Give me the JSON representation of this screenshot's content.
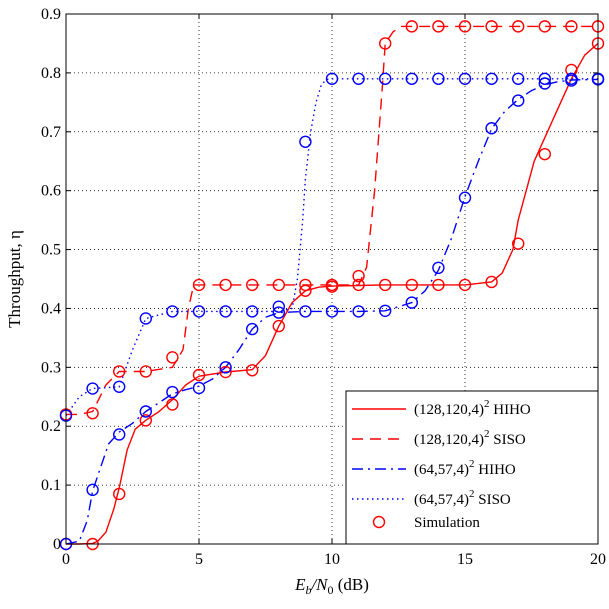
{
  "chart_data": {
    "type": "line",
    "title": "",
    "xlabel": "E_b/N_0 (dB)",
    "xlabel_parts": {
      "e": "E",
      "b": "b",
      "slash": "/N",
      "zero": "0",
      "unit": " (dB)"
    },
    "ylabel": "Throughput, η",
    "xlim": [
      0,
      20
    ],
    "ylim": [
      0,
      0.9
    ],
    "xticks": [
      0,
      5,
      10,
      15,
      20
    ],
    "xtick_labels": [
      "0",
      "5",
      "10",
      "15",
      "20"
    ],
    "yticks": [
      0,
      0.1,
      0.2,
      0.3,
      0.4,
      0.5,
      0.6,
      0.7,
      0.8,
      0.9
    ],
    "ytick_labels": [
      "0",
      "0.1",
      "0.2",
      "0.3",
      "0.4",
      "0.5",
      "0.6",
      "0.7",
      "0.8",
      "0.9"
    ],
    "grid": true,
    "legend_position": "bottom-right",
    "series": [
      {
        "name": "(128,120,4)^2 HIHO",
        "label_base": "(128,120,4)",
        "label_sup": "2",
        "label_suffix": " HIHO",
        "color": "#ff0000",
        "style": "solid",
        "x": [
          0,
          0.5,
          1,
          1.2,
          1.5,
          1.8,
          2,
          2.3,
          2.6,
          3,
          3.5,
          4,
          4.5,
          5,
          6,
          7,
          7.5,
          8,
          8.5,
          9,
          9.5,
          10,
          11,
          12,
          13,
          14,
          15,
          16,
          16.4,
          16.8,
          17,
          17.3,
          17.6,
          18,
          18.5,
          19,
          19.5,
          20
        ],
        "y": [
          0,
          0,
          0.001,
          0.005,
          0.02,
          0.06,
          0.095,
          0.16,
          0.195,
          0.21,
          0.225,
          0.245,
          0.27,
          0.285,
          0.292,
          0.296,
          0.32,
          0.37,
          0.41,
          0.43,
          0.436,
          0.438,
          0.439,
          0.44,
          0.44,
          0.44,
          0.44,
          0.445,
          0.46,
          0.5,
          0.55,
          0.6,
          0.65,
          0.69,
          0.74,
          0.79,
          0.83,
          0.85
        ],
        "sim_x": [
          0,
          1,
          2,
          3,
          4,
          5,
          6,
          7,
          8,
          9,
          10,
          11,
          12,
          13,
          14,
          15,
          16,
          17,
          18,
          19,
          20
        ],
        "sim_y": [
          0,
          0,
          0.085,
          0.21,
          0.237,
          0.287,
          0.292,
          0.295,
          0.37,
          0.43,
          0.437,
          0.44,
          0.44,
          0.44,
          0.44,
          0.44,
          0.445,
          0.51,
          0.662,
          0.805,
          0.85
        ]
      },
      {
        "name": "(128,120,4)^2 SISO",
        "label_base": "(128,120,4)",
        "label_sup": "2",
        "label_suffix": " SISO",
        "color": "#ff0000",
        "style": "dashed",
        "x": [
          0,
          0.5,
          1,
          1.5,
          2,
          3,
          4,
          4.4,
          4.6,
          4.8,
          5,
          6,
          7,
          8,
          9,
          10,
          11,
          11.3,
          11.6,
          11.9,
          12,
          12.3,
          12.6,
          13,
          14,
          15,
          16,
          17,
          18,
          19,
          20
        ],
        "y": [
          0.22,
          0.22,
          0.225,
          0.27,
          0.293,
          0.293,
          0.3,
          0.33,
          0.4,
          0.44,
          0.44,
          0.44,
          0.44,
          0.44,
          0.44,
          0.44,
          0.44,
          0.47,
          0.6,
          0.78,
          0.85,
          0.87,
          0.879,
          0.879,
          0.879,
          0.879,
          0.879,
          0.879,
          0.879,
          0.879,
          0.879
        ],
        "sim_x": [
          0,
          1,
          2,
          3,
          4,
          5,
          6,
          7,
          8,
          9,
          10,
          11,
          12,
          13,
          14,
          15,
          16,
          17,
          18,
          19,
          20
        ],
        "sim_y": [
          0.22,
          0.222,
          0.293,
          0.293,
          0.317,
          0.44,
          0.44,
          0.44,
          0.44,
          0.44,
          0.44,
          0.455,
          0.85,
          0.879,
          0.879,
          0.879,
          0.879,
          0.879,
          0.879,
          0.879,
          0.879
        ]
      },
      {
        "name": "(64,57,4)^2 HIHO",
        "label_base": "(64,57,4)",
        "label_sup": "2",
        "label_suffix": " HIHO",
        "color": "#0000ff",
        "style": "dashdot",
        "x": [
          0,
          0.5,
          0.8,
          1,
          1.3,
          1.6,
          2,
          2.5,
          3,
          3.5,
          4,
          4.5,
          5,
          5.5,
          6,
          6.5,
          7,
          7.5,
          8,
          9,
          10,
          11,
          12,
          13,
          13.5,
          14,
          14.5,
          15,
          15.5,
          16,
          16.5,
          17,
          17.5,
          18,
          18.5,
          19,
          20
        ],
        "y": [
          0,
          0.005,
          0.04,
          0.09,
          0.13,
          0.17,
          0.19,
          0.205,
          0.225,
          0.24,
          0.255,
          0.262,
          0.268,
          0.28,
          0.3,
          0.33,
          0.365,
          0.385,
          0.393,
          0.395,
          0.395,
          0.395,
          0.396,
          0.41,
          0.43,
          0.465,
          0.52,
          0.59,
          0.65,
          0.705,
          0.735,
          0.755,
          0.77,
          0.78,
          0.785,
          0.788,
          0.789
        ],
        "sim_x": [
          0,
          1,
          2,
          3,
          4,
          5,
          6,
          7,
          8,
          9,
          10,
          11,
          12,
          13,
          14,
          15,
          16,
          17,
          18,
          19,
          20
        ],
        "sim_y": [
          0,
          0.092,
          0.186,
          0.225,
          0.258,
          0.265,
          0.3,
          0.365,
          0.393,
          0.395,
          0.395,
          0.395,
          0.396,
          0.41,
          0.469,
          0.588,
          0.706,
          0.753,
          0.782,
          0.787,
          0.789
        ]
      },
      {
        "name": "(64,57,4)^2 SISO",
        "label_base": "(64,57,4)",
        "label_sup": "2",
        "label_suffix": " SISO",
        "color": "#0000ff",
        "style": "dotted",
        "x": [
          0,
          0.5,
          1,
          2,
          2.5,
          3,
          4,
          5,
          6,
          7,
          8,
          8.5,
          8.7,
          8.9,
          9,
          9.2,
          9.4,
          9.6,
          9.8,
          10,
          11,
          12,
          13,
          14,
          15,
          16,
          17,
          18,
          19,
          20
        ],
        "y": [
          0.218,
          0.25,
          0.264,
          0.267,
          0.33,
          0.383,
          0.395,
          0.395,
          0.395,
          0.395,
          0.395,
          0.4,
          0.45,
          0.55,
          0.62,
          0.7,
          0.75,
          0.78,
          0.789,
          0.79,
          0.79,
          0.79,
          0.79,
          0.79,
          0.79,
          0.79,
          0.79,
          0.79,
          0.79,
          0.79
        ],
        "sim_x": [
          0,
          1,
          2,
          3,
          4,
          5,
          6,
          7,
          8,
          9,
          10,
          11,
          12,
          13,
          14,
          15,
          16,
          17,
          18,
          19,
          20
        ],
        "sim_y": [
          0.218,
          0.264,
          0.267,
          0.383,
          0.395,
          0.395,
          0.395,
          0.395,
          0.403,
          0.683,
          0.79,
          0.79,
          0.79,
          0.79,
          0.79,
          0.79,
          0.79,
          0.79,
          0.79,
          0.79,
          0.79
        ]
      }
    ],
    "legend": {
      "entries": [
        {
          "series": 0
        },
        {
          "series": 1
        },
        {
          "series": 2
        },
        {
          "series": 3
        },
        {
          "label": "Simulation",
          "marker": "circle",
          "color": "#ff0000"
        }
      ]
    }
  }
}
